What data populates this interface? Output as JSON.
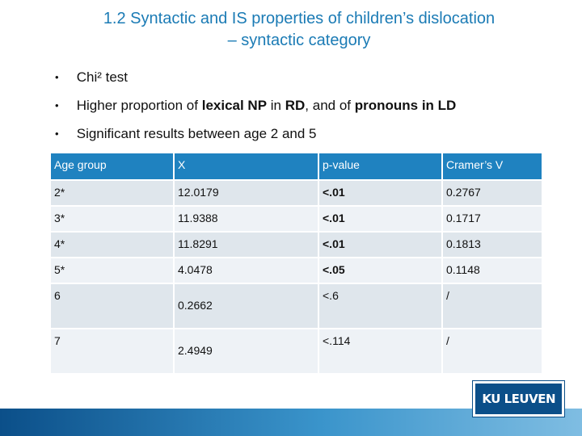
{
  "slide": {
    "title_line1": "1.2 Syntactic and IS properties of children’s dislocation",
    "title_line2": "– syntactic category"
  },
  "bullets": {
    "b1": "Chi² test",
    "b2": {
      "p1": "Higher proportion of ",
      "bold1": "lexical NP",
      "p2": " in ",
      "bold2": "RD",
      "p3": ", and of ",
      "bold3": "pronouns in LD"
    },
    "b3": "Significant results between age 2 and 5",
    "marker": "•"
  },
  "table": {
    "headers": [
      "Age group",
      "X",
      "p-value",
      "Cramer’s V"
    ],
    "rows": [
      [
        "2*",
        "12.0179",
        "<.01",
        "0.2767"
      ],
      [
        "3*",
        "11.9388",
        "<.01",
        "0.1717"
      ],
      [
        "4*",
        "11.8291",
        "<.01",
        "0.1813"
      ],
      [
        "5*",
        "4.0478",
        "<.05",
        "0.1148"
      ],
      [
        "6",
        "0.2662",
        "<.6",
        "/"
      ],
      [
        "7",
        "2.4949",
        "<.114",
        "/"
      ]
    ]
  },
  "logo": {
    "text": "KU LEUVEN",
    "color": "#0b4f89"
  },
  "colors": {
    "title": "#1b7bb5",
    "header_fill": "#1f82c0",
    "row_fill": "#dfe6ec",
    "row_fill_alt": "#eef2f6"
  }
}
